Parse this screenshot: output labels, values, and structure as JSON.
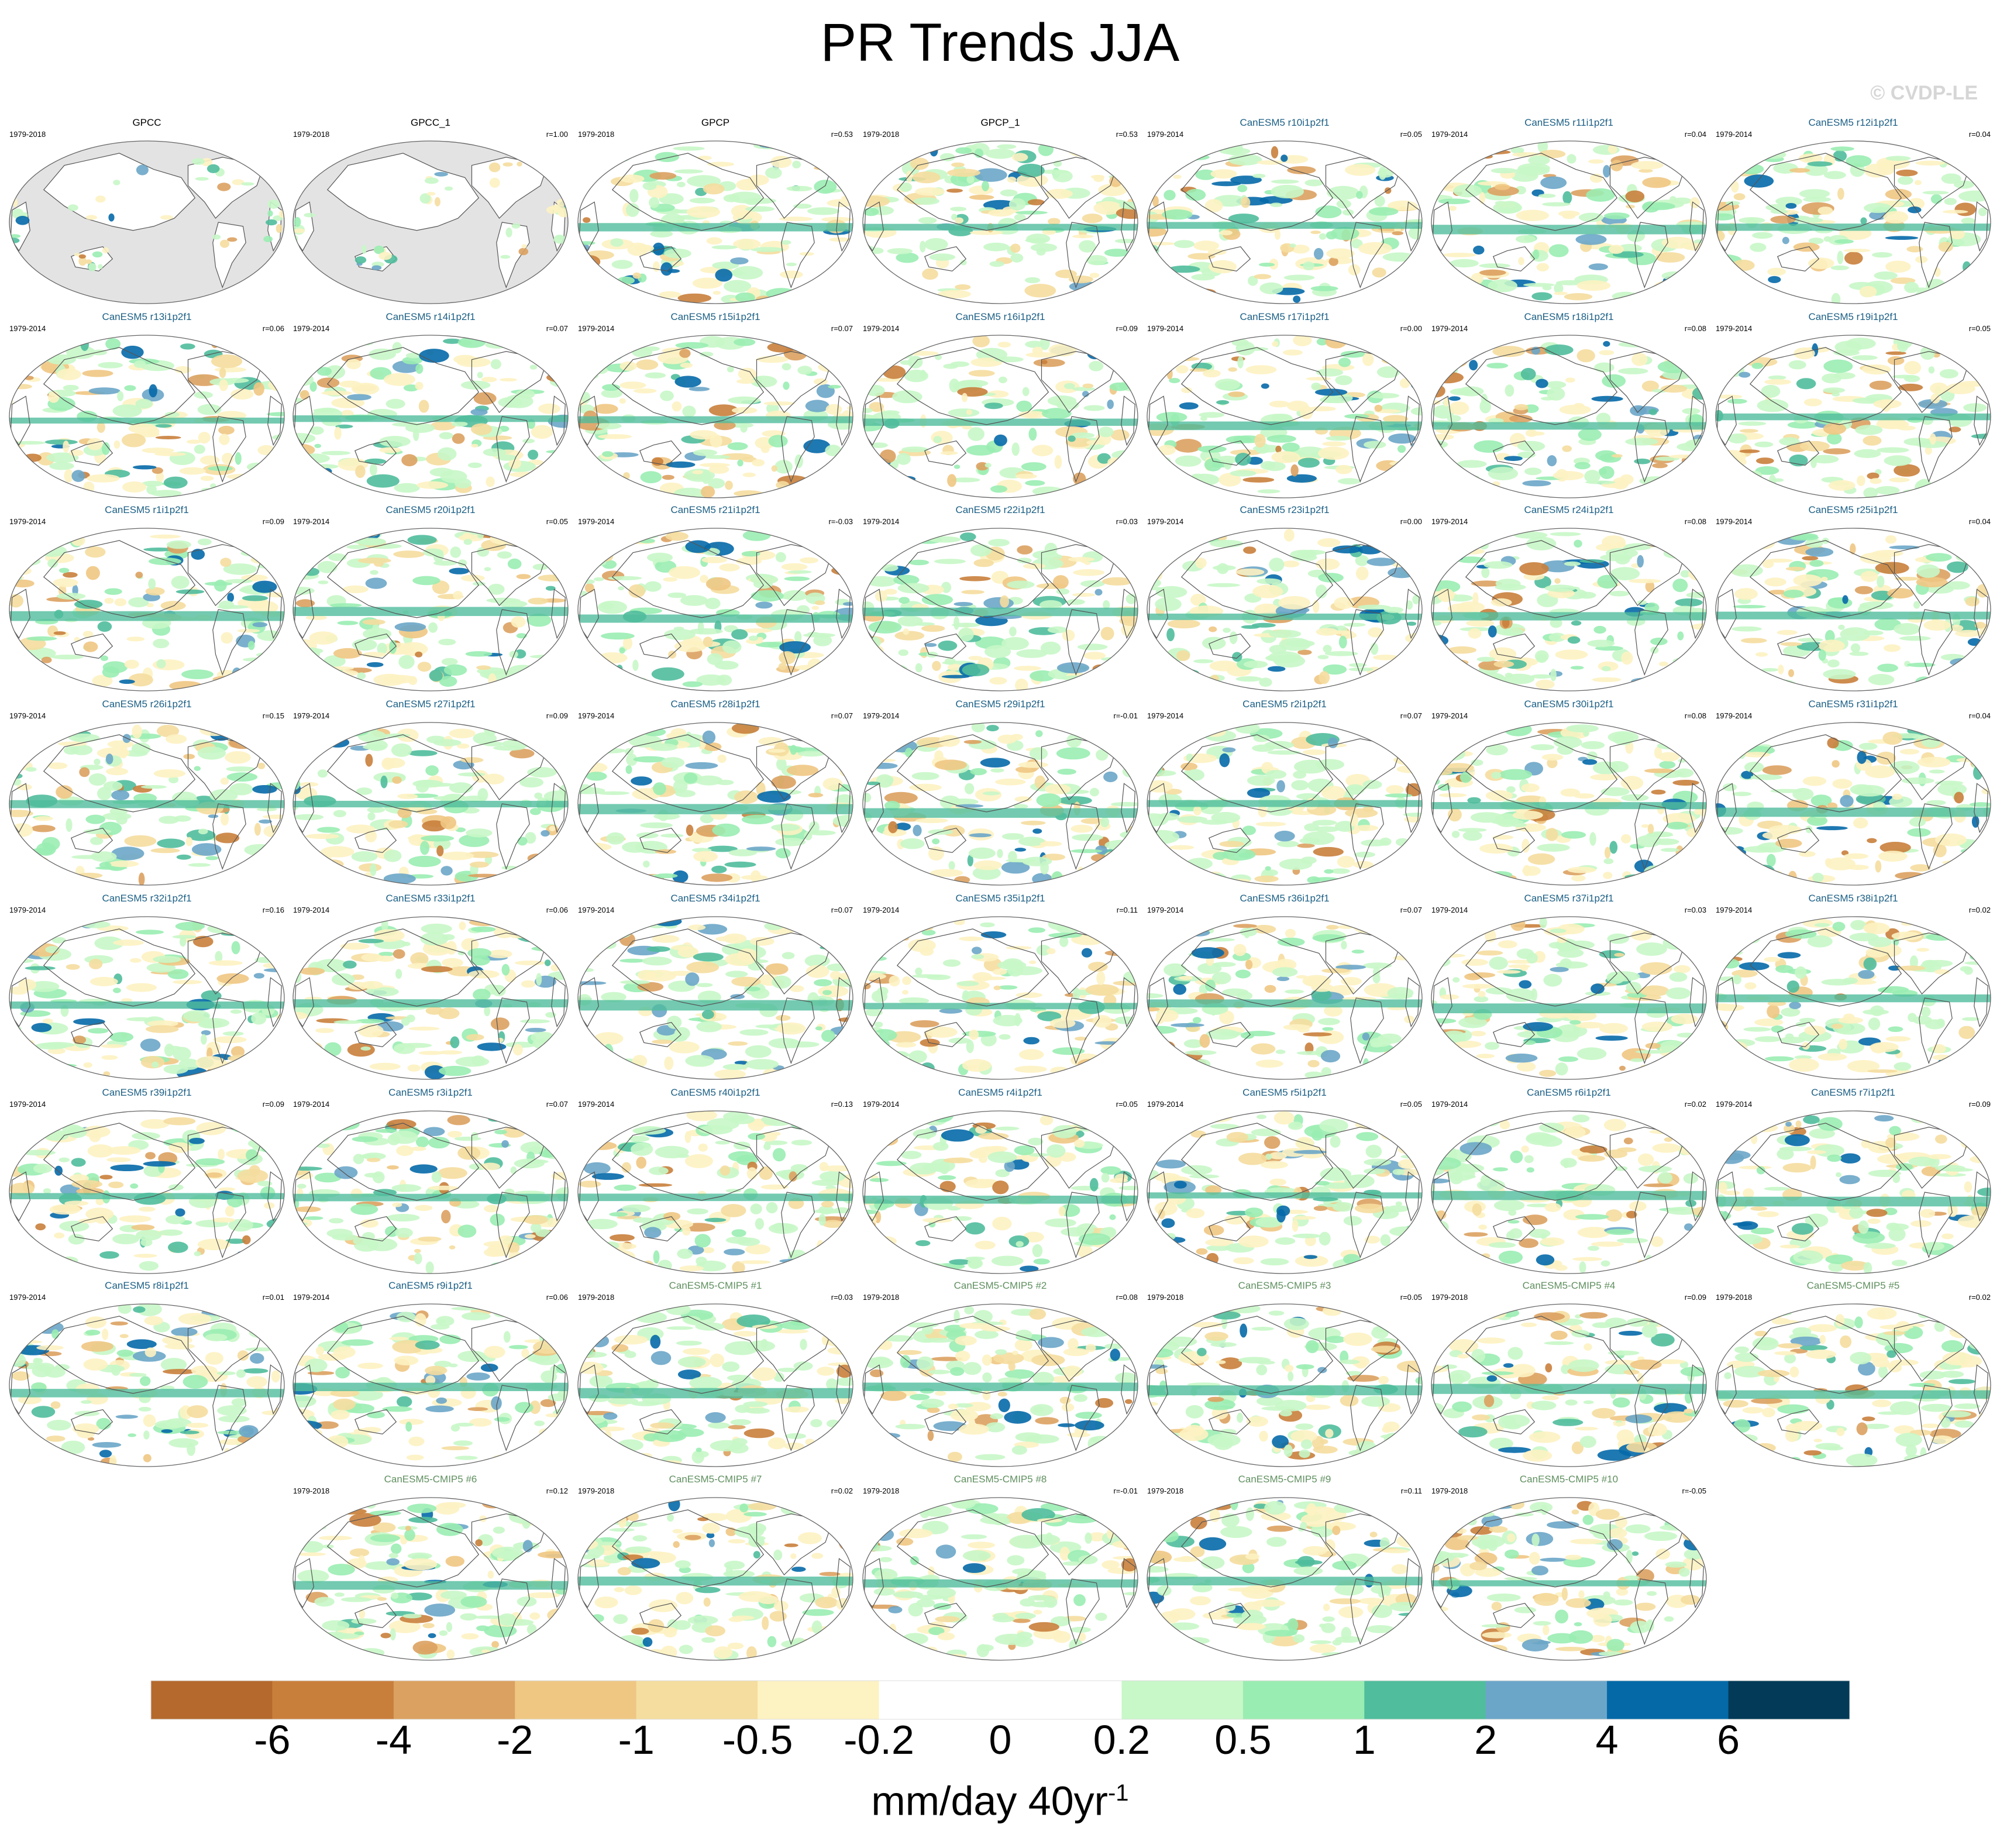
{
  "title": "PR Trends JJA",
  "watermark": "© CVDP-LE",
  "colorbar": {
    "unit_text": "mm/day 40yr",
    "unit_exp": "-1",
    "levels": [
      "-6",
      "-4",
      "-2",
      "-1",
      "-0.5",
      "-0.2",
      "0",
      "0.2",
      "0.5",
      "1",
      "2",
      "4",
      "6"
    ],
    "colors": [
      "#b5692d",
      "#c97f3c",
      "#dba160",
      "#efc783",
      "#f5dd9f",
      "#fdf2c2",
      "#ffffff",
      "#ffffff",
      "#c8f7c8",
      "#9aedb2",
      "#50bd9c",
      "#6ba6c8",
      "#0569a8",
      "#033a58"
    ]
  },
  "chart_data": {
    "type": "heatmap",
    "title": "PR Trends JJA",
    "variable": "precipitation trend",
    "season": "JJA",
    "units": "mm/day 40yr-1",
    "contour_levels": [
      -6,
      -4,
      -2,
      -1,
      -0.5,
      -0.2,
      0,
      0.2,
      0.5,
      1,
      2,
      4,
      6
    ],
    "panels": [
      {
        "title": "GPCC",
        "years": "1979-2018",
        "r": "",
        "kind": "obs"
      },
      {
        "title": "GPCC_1",
        "years": "1979-2018",
        "r": "r=1.00",
        "kind": "obs"
      },
      {
        "title": "GPCP",
        "years": "1979-2018",
        "r": "r=0.53",
        "kind": "obs"
      },
      {
        "title": "GPCP_1",
        "years": "1979-2018",
        "r": "r=0.53",
        "kind": "obs"
      },
      {
        "title": "CanESM5 r10i1p2f1",
        "years": "1979-2014",
        "r": "r=0.05",
        "kind": "le"
      },
      {
        "title": "CanESM5 r11i1p2f1",
        "years": "1979-2014",
        "r": "r=0.04",
        "kind": "le"
      },
      {
        "title": "CanESM5 r12i1p2f1",
        "years": "1979-2014",
        "r": "r=0.04",
        "kind": "le"
      },
      {
        "title": "CanESM5 r13i1p2f1",
        "years": "1979-2014",
        "r": "r=0.06",
        "kind": "le"
      },
      {
        "title": "CanESM5 r14i1p2f1",
        "years": "1979-2014",
        "r": "r=0.07",
        "kind": "le"
      },
      {
        "title": "CanESM5 r15i1p2f1",
        "years": "1979-2014",
        "r": "r=0.07",
        "kind": "le"
      },
      {
        "title": "CanESM5 r16i1p2f1",
        "years": "1979-2014",
        "r": "r=0.09",
        "kind": "le"
      },
      {
        "title": "CanESM5 r17i1p2f1",
        "years": "1979-2014",
        "r": "r=0.00",
        "kind": "le"
      },
      {
        "title": "CanESM5 r18i1p2f1",
        "years": "1979-2014",
        "r": "r=0.08",
        "kind": "le"
      },
      {
        "title": "CanESM5 r19i1p2f1",
        "years": "1979-2014",
        "r": "r=0.05",
        "kind": "le"
      },
      {
        "title": "CanESM5 r1i1p2f1",
        "years": "1979-2014",
        "r": "r=0.09",
        "kind": "le"
      },
      {
        "title": "CanESM5 r20i1p2f1",
        "years": "1979-2014",
        "r": "r=0.05",
        "kind": "le"
      },
      {
        "title": "CanESM5 r21i1p2f1",
        "years": "1979-2014",
        "r": "r=-0.03",
        "kind": "le"
      },
      {
        "title": "CanESM5 r22i1p2f1",
        "years": "1979-2014",
        "r": "r=0.03",
        "kind": "le"
      },
      {
        "title": "CanESM5 r23i1p2f1",
        "years": "1979-2014",
        "r": "r=0.00",
        "kind": "le"
      },
      {
        "title": "CanESM5 r24i1p2f1",
        "years": "1979-2014",
        "r": "r=0.08",
        "kind": "le"
      },
      {
        "title": "CanESM5 r25i1p2f1",
        "years": "1979-2014",
        "r": "r=0.04",
        "kind": "le"
      },
      {
        "title": "CanESM5 r26i1p2f1",
        "years": "1979-2014",
        "r": "r=0.15",
        "kind": "le"
      },
      {
        "title": "CanESM5 r27i1p2f1",
        "years": "1979-2014",
        "r": "r=0.09",
        "kind": "le"
      },
      {
        "title": "CanESM5 r28i1p2f1",
        "years": "1979-2014",
        "r": "r=0.07",
        "kind": "le"
      },
      {
        "title": "CanESM5 r29i1p2f1",
        "years": "1979-2014",
        "r": "r=-0.01",
        "kind": "le"
      },
      {
        "title": "CanESM5 r2i1p2f1",
        "years": "1979-2014",
        "r": "r=0.07",
        "kind": "le"
      },
      {
        "title": "CanESM5 r30i1p2f1",
        "years": "1979-2014",
        "r": "r=0.08",
        "kind": "le"
      },
      {
        "title": "CanESM5 r31i1p2f1",
        "years": "1979-2014",
        "r": "r=0.04",
        "kind": "le"
      },
      {
        "title": "CanESM5 r32i1p2f1",
        "years": "1979-2014",
        "r": "r=0.16",
        "kind": "le"
      },
      {
        "title": "CanESM5 r33i1p2f1",
        "years": "1979-2014",
        "r": "r=0.06",
        "kind": "le"
      },
      {
        "title": "CanESM5 r34i1p2f1",
        "years": "1979-2014",
        "r": "r=0.07",
        "kind": "le"
      },
      {
        "title": "CanESM5 r35i1p2f1",
        "years": "1979-2014",
        "r": "r=0.11",
        "kind": "le"
      },
      {
        "title": "CanESM5 r36i1p2f1",
        "years": "1979-2014",
        "r": "r=0.07",
        "kind": "le"
      },
      {
        "title": "CanESM5 r37i1p2f1",
        "years": "1979-2014",
        "r": "r=0.03",
        "kind": "le"
      },
      {
        "title": "CanESM5 r38i1p2f1",
        "years": "1979-2014",
        "r": "r=0.02",
        "kind": "le"
      },
      {
        "title": "CanESM5 r39i1p2f1",
        "years": "1979-2014",
        "r": "r=0.09",
        "kind": "le"
      },
      {
        "title": "CanESM5 r3i1p2f1",
        "years": "1979-2014",
        "r": "r=0.07",
        "kind": "le"
      },
      {
        "title": "CanESM5 r40i1p2f1",
        "years": "1979-2014",
        "r": "r=0.13",
        "kind": "le"
      },
      {
        "title": "CanESM5 r4i1p2f1",
        "years": "1979-2014",
        "r": "r=0.05",
        "kind": "le"
      },
      {
        "title": "CanESM5 r5i1p2f1",
        "years": "1979-2014",
        "r": "r=0.05",
        "kind": "le"
      },
      {
        "title": "CanESM5 r6i1p2f1",
        "years": "1979-2014",
        "r": "r=0.02",
        "kind": "le"
      },
      {
        "title": "CanESM5 r7i1p2f1",
        "years": "1979-2014",
        "r": "r=0.09",
        "kind": "le"
      },
      {
        "title": "CanESM5 r8i1p2f1",
        "years": "1979-2014",
        "r": "r=0.01",
        "kind": "le"
      },
      {
        "title": "CanESM5 r9i1p2f1",
        "years": "1979-2014",
        "r": "r=0.06",
        "kind": "le"
      },
      {
        "title": "CanESM5-CMIP5 #1",
        "years": "1979-2018",
        "r": "r=0.03",
        "kind": "cmip"
      },
      {
        "title": "CanESM5-CMIP5 #2",
        "years": "1979-2018",
        "r": "r=0.08",
        "kind": "cmip"
      },
      {
        "title": "CanESM5-CMIP5 #3",
        "years": "1979-2018",
        "r": "r=0.05",
        "kind": "cmip"
      },
      {
        "title": "CanESM5-CMIP5 #4",
        "years": "1979-2018",
        "r": "r=0.09",
        "kind": "cmip"
      },
      {
        "title": "CanESM5-CMIP5 #5",
        "years": "1979-2018",
        "r": "r=0.02",
        "kind": "cmip"
      },
      {
        "title": "CanESM5-CMIP5 #6",
        "years": "1979-2018",
        "r": "r=0.12",
        "kind": "cmip"
      },
      {
        "title": "CanESM5-CMIP5 #7",
        "years": "1979-2018",
        "r": "r=0.02",
        "kind": "cmip"
      },
      {
        "title": "CanESM5-CMIP5 #8",
        "years": "1979-2018",
        "r": "r=-0.01",
        "kind": "cmip"
      },
      {
        "title": "CanESM5-CMIP5 #9",
        "years": "1979-2018",
        "r": "r=0.11",
        "kind": "cmip"
      },
      {
        "title": "CanESM5-CMIP5 #10",
        "years": "1979-2018",
        "r": "r=-0.05",
        "kind": "cmip"
      }
    ]
  }
}
